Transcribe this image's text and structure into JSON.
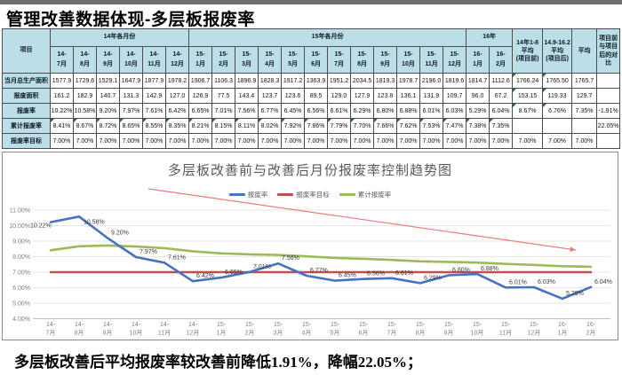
{
  "page": {
    "title": "管理改善数据体现-多层板报废率",
    "footer": "多层板改善后平均报废率较改善前降低1.91%，降幅22.05%；"
  },
  "colors": {
    "header_bg": "#BCDEE9",
    "scrap_rate_line": "#4472C4",
    "target_line": "#C0504D",
    "cumulative_line": "#9BBB59",
    "trend_arrow": "#E97B7B",
    "cell_flag_triangle": "#1F7145"
  },
  "table": {
    "corner_label": "项目",
    "group_headers": [
      {
        "label": "14年各月份",
        "span": 6
      },
      {
        "label": "15年各月份",
        "span": 12
      },
      {
        "label": "16年",
        "span": 2
      }
    ],
    "summary_headers": [
      {
        "lines": [
          "14年1-8",
          "平均",
          "(项目前)"
        ]
      },
      {
        "lines": [
          "14.9-16.2",
          "平均",
          "(项目后)"
        ]
      },
      {
        "lines": [
          "平均"
        ]
      },
      {
        "lines": [
          "项目前",
          "与项目",
          "后的对",
          "比"
        ]
      }
    ],
    "months": [
      "14-7月",
      "14-8月",
      "14-9月",
      "14-10月",
      "14-11月",
      "14-12月",
      "15-1月",
      "15-2月",
      "15-3月",
      "15-4月",
      "15-5月",
      "15-6月",
      "15-7月",
      "15-8月",
      "15-9月",
      "15-10月",
      "15-11月",
      "15-12月",
      "16-1月",
      "16-2月"
    ],
    "rows": [
      {
        "label": "当月总生产面积",
        "cells": [
          "1577.9",
          "1729.6",
          "1529.1",
          "1647.9",
          "1877.9",
          "1978.2",
          "1906.7",
          "1106.3",
          "1896.9",
          "1828.3",
          "1917.2",
          "1363.9",
          "1951.2",
          "2034.5",
          "1819.3",
          "1978.7",
          "2196.0",
          "1819.6",
          "1814.7",
          "1112.6",
          "1766.24",
          "1765.50",
          "1765.7",
          ""
        ]
      },
      {
        "label": "报废面积",
        "cells": [
          "161.2",
          "182.9",
          "140.7",
          "131.3",
          "142.9",
          "127.0",
          "126.9",
          "77.5",
          "143.4",
          "123.7",
          "123.6",
          "89.5",
          "129.0",
          "127.9",
          "123.8",
          "136.1",
          "131.9",
          "109.7",
          "96.0",
          "67.2",
          "153.15",
          "119.33",
          "129.7",
          ""
        ]
      },
      {
        "label": "报废率",
        "cells": [
          "10.22%",
          "10.58%",
          "9.20%",
          "7.97%",
          "7.61%",
          "6.42%",
          "6.65%",
          "7.01%",
          "7.56%",
          "6.77%",
          "6.45%",
          "6.56%",
          "6.61%",
          "6.29%",
          "6.80%",
          "6.88%",
          "6.01%",
          "6.03%",
          "5.29%",
          "6.04%",
          "8.67%",
          "6.76%",
          "7.35%",
          "-1.91%"
        ]
      },
      {
        "label": "累计报废率",
        "cells": [
          "8.41%",
          "8.67%",
          "8.72%",
          "8.65%",
          "8.55%",
          "8.35%",
          "8.21%",
          "8.15%",
          "8.11%",
          "8.02%",
          "7.92%",
          "7.86%",
          "7.79%",
          "7.70%",
          "7.66%",
          "7.62%",
          "7.53%",
          "7.47%",
          "7.38%",
          "7.35%",
          "",
          "",
          "",
          "22.05%"
        ]
      },
      {
        "label": "报废率目标",
        "cells": [
          "7.00%",
          "7.00%",
          "7.00%",
          "7.00%",
          "7.00%",
          "7.00%",
          "7.00%",
          "7.00%",
          "7.00%",
          "7.00%",
          "7.00%",
          "7.00%",
          "7.00%",
          "7.00%",
          "7.00%",
          "7.00%",
          "7.00%",
          "7.00%",
          "7.00%",
          "7.00%",
          "7.00%",
          "7.00%",
          "7.00%",
          ""
        ]
      }
    ]
  },
  "chart_data": {
    "type": "line",
    "title": "多层板改善前与改善后月份报废率控制趋势图",
    "categories": [
      "14-7月",
      "14-8月",
      "14-9月",
      "14-10月",
      "14-11月",
      "14-12月",
      "15-1月",
      "15-2月",
      "15-3月",
      "15-4月",
      "15-5月",
      "15-6月",
      "15-7月",
      "15-8月",
      "15-9月",
      "15-10月",
      "15-11月",
      "15-12月",
      "16-1月",
      "16-2月"
    ],
    "series": [
      {
        "name": "报废率",
        "color": "#4472C4",
        "data_labels": true,
        "values": [
          10.22,
          10.58,
          9.2,
          7.97,
          7.61,
          6.42,
          6.65,
          7.01,
          7.56,
          6.77,
          6.45,
          6.56,
          6.61,
          6.29,
          6.8,
          6.88,
          6.01,
          6.03,
          5.29,
          6.04
        ]
      },
      {
        "name": "报废率目标",
        "color": "#C0504D",
        "data_labels": false,
        "values": [
          7.0,
          7.0,
          7.0,
          7.0,
          7.0,
          7.0,
          7.0,
          7.0,
          7.0,
          7.0,
          7.0,
          7.0,
          7.0,
          7.0,
          7.0,
          7.0,
          7.0,
          7.0,
          7.0,
          7.0
        ]
      },
      {
        "name": "累计报废率",
        "color": "#9BBB59",
        "data_labels": false,
        "values": [
          8.41,
          8.67,
          8.72,
          8.65,
          8.55,
          8.35,
          8.21,
          8.15,
          8.11,
          8.02,
          7.92,
          7.86,
          7.79,
          7.7,
          7.66,
          7.62,
          7.53,
          7.47,
          7.38,
          7.35
        ]
      }
    ],
    "xlabel": "",
    "ylabel": "",
    "ylim": [
      4,
      11
    ],
    "ytick_step": 1,
    "ytick_format": "0.00%",
    "grid": true,
    "legend_position": "top",
    "annotation": {
      "type": "arrow",
      "direction": "down-right",
      "color": "#E97B7B"
    }
  }
}
